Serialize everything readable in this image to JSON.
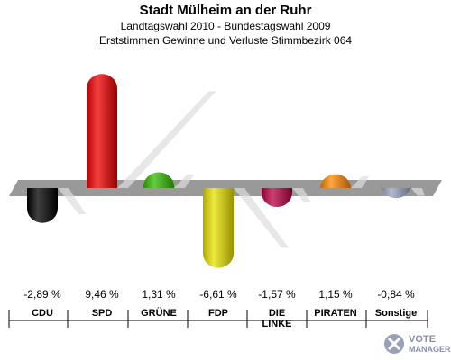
{
  "header": {
    "title": "Stadt Mülheim an der Ruhr",
    "subtitle1": "Landtagswahl 2010 - Bundestagswahl 2009",
    "subtitle2": "Erststimmen Gewinne und Verluste Stimmbezirk 064"
  },
  "chart_data": {
    "type": "bar",
    "categories": [
      "CDU",
      "SPD",
      "GRÜNE",
      "FDP",
      "DIE LINKE",
      "PIRATEN",
      "Sonstige"
    ],
    "label_lines": [
      [
        "CDU"
      ],
      [
        "SPD"
      ],
      [
        "GRÜNE"
      ],
      [
        "FDP"
      ],
      [
        "DIE",
        "LINKE"
      ],
      [
        "PIRATEN"
      ],
      [
        "Sonstige"
      ]
    ],
    "values": [
      -2.89,
      9.46,
      1.31,
      -6.61,
      -1.57,
      1.15,
      -0.84
    ],
    "value_labels": [
      "-2,89 %",
      "9,46 %",
      "1,31 %",
      "-6,61 %",
      "-1,57 %",
      "1,15 %",
      "-0,84 %"
    ],
    "colors": [
      "#000000",
      "#ee0000",
      "#33bb00",
      "#e8e000",
      "#bb0044",
      "#ff8800",
      "#99a2c2"
    ]
  },
  "logo": {
    "line1": "VOTE",
    "line2": "MANAGER"
  }
}
